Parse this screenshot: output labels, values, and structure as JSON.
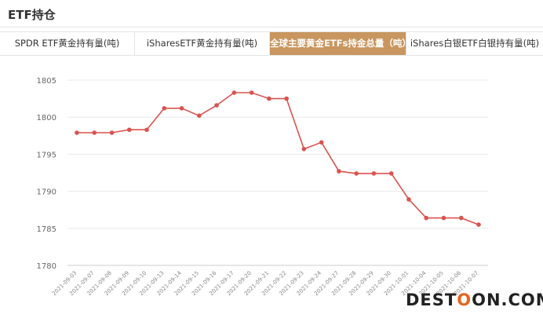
{
  "page": {
    "title": "ETF持仓"
  },
  "tabs": [
    {
      "label": "SPDR ETF黄金持有量(吨)"
    },
    {
      "label": "iSharesETF黄金持有量(吨)"
    },
    {
      "label": "全球主要黄金ETFs持金总量（吨）"
    },
    {
      "label": "iShares白银ETF白银持有量(吨)"
    }
  ],
  "active_tab": 2,
  "watermark": {
    "part1": "DEST",
    "part2": "O",
    "part3": "ON.COM"
  },
  "chart_data": {
    "type": "line",
    "title": "",
    "xlabel": "",
    "ylabel": "",
    "ylim": [
      1780,
      1805
    ],
    "yticks": [
      1780,
      1785,
      1790,
      1795,
      1800,
      1805
    ],
    "grid": true,
    "line_color": "#d9534f",
    "categories": [
      "2021-09-03",
      "2021-09-07",
      "2021-09-08",
      "2021-09-09",
      "2021-09-10",
      "2021-09-13",
      "2021-09-14",
      "2021-09-15",
      "2021-09-16",
      "2021-09-17",
      "2021-09-20",
      "2021-09-21",
      "2021-09-22",
      "2021-09-23",
      "2021-09-24",
      "2021-09-27",
      "2021-09-28",
      "2021-09-29",
      "2021-09-30",
      "2021-10-01",
      "2021-10-04",
      "2021-10-05",
      "2021-10-06",
      "2021-10-07"
    ],
    "values": [
      1797.9,
      1797.9,
      1797.9,
      1798.3,
      1798.3,
      1801.2,
      1801.2,
      1800.2,
      1801.6,
      1803.3,
      1803.3,
      1802.5,
      1802.5,
      1795.7,
      1796.6,
      1792.7,
      1792.4,
      1792.4,
      1792.4,
      1788.9,
      1786.4,
      1786.4,
      1786.4,
      1785.5
    ]
  }
}
